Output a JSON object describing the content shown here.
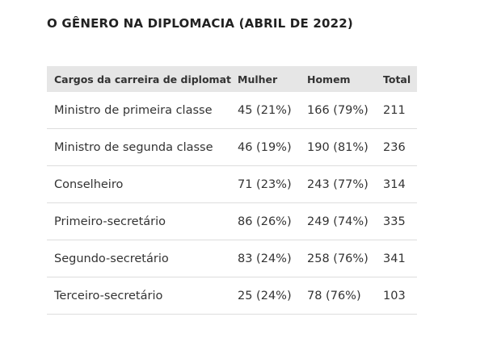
{
  "chart_data": {
    "type": "table",
    "title": "O GÊNERO NA DIPLOMACIA (ABRIL DE 2022)",
    "columns": [
      "Cargos da carreira de diplomata",
      "Mulher",
      "Homem",
      "Total"
    ],
    "rows": [
      {
        "cargo": "Ministro de primeira classe",
        "mulher": "45 (21%)",
        "homem": "166 (79%)",
        "total": "211"
      },
      {
        "cargo": "Ministro de segunda classe",
        "mulher": "46 (19%)",
        "homem": "190 (81%)",
        "total": "236"
      },
      {
        "cargo": "Conselheiro",
        "mulher": "71 (23%)",
        "homem": "243 (77%)",
        "total": "314"
      },
      {
        "cargo": "Primeiro-secretário",
        "mulher": "86 (26%)",
        "homem": "249 (74%)",
        "total": "335"
      },
      {
        "cargo": "Segundo-secretário",
        "mulher": "83 (24%)",
        "homem": "258 (76%)",
        "total": "341"
      },
      {
        "cargo": "Terceiro-secretário",
        "mulher": "25 (24%)",
        "homem": "78 (76%)",
        "total": "103"
      }
    ]
  }
}
